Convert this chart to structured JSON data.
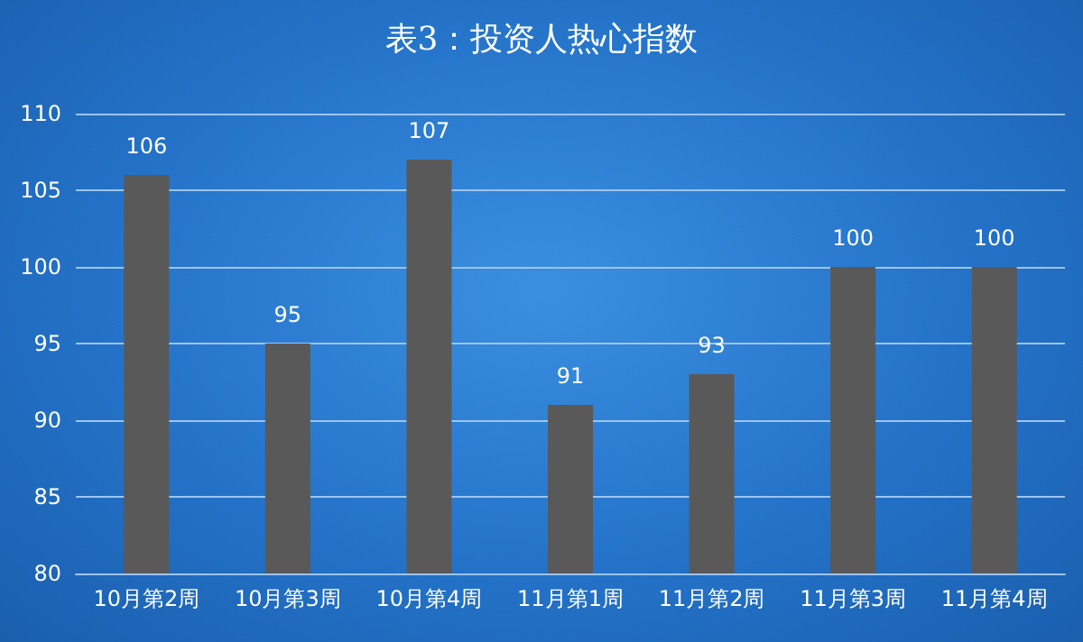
{
  "chart_data": {
    "type": "bar",
    "title": "表3：投资人热心指数",
    "categories": [
      "10月第2周",
      "10月第3周",
      "10月第4周",
      "11月第1周",
      "11月第2周",
      "11月第3周",
      "11月第4周"
    ],
    "values": [
      106,
      95,
      107,
      91,
      93,
      100,
      100
    ],
    "color": "#595959",
    "ylim": [
      80,
      110
    ],
    "yticks": [
      80,
      85,
      90,
      95,
      100,
      105,
      110
    ],
    "grid": "y",
    "data_labels": true
  }
}
